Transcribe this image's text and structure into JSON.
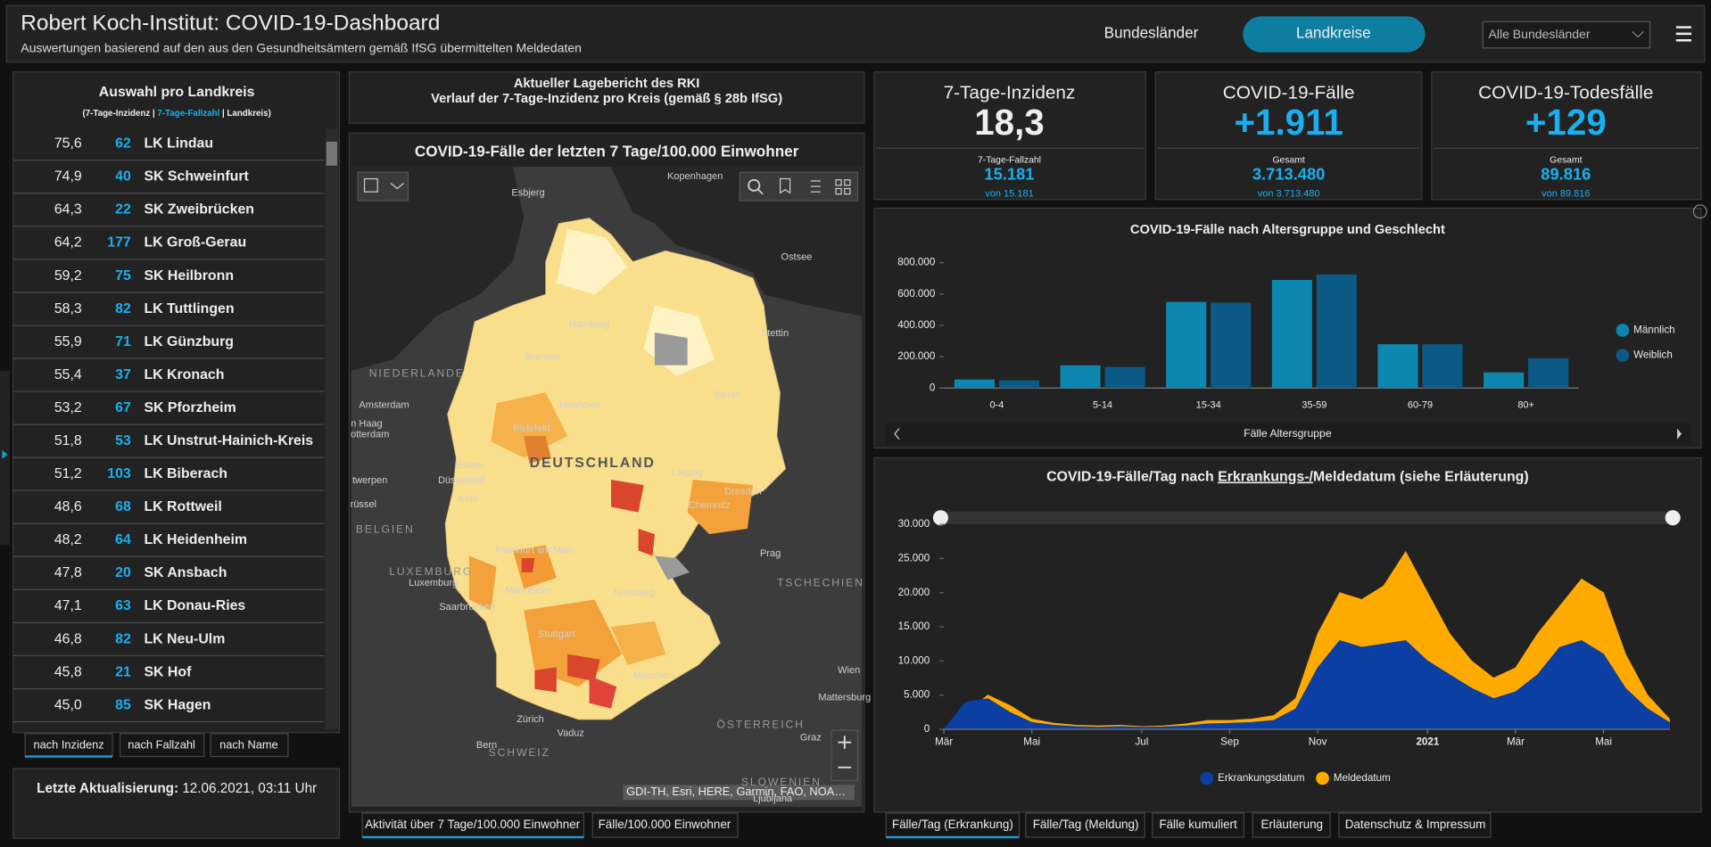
{
  "header": {
    "title": "Robert Koch-Institut: COVID-19-Dashboard",
    "subtitle": "Auswertungen basierend auf den aus den Gesundheitsämtern gemäß IfSG übermittelten Meldedaten",
    "nav": [
      "Bundesländer",
      "Landkreise"
    ],
    "select": "Alle Bundesländer"
  },
  "district_list": {
    "title": "Auswahl pro Landkreis",
    "legend": [
      "(7-Tage-Inzidenz | ",
      "7-Tage-Fallzahl",
      " | Landkreis)"
    ],
    "rows": [
      [
        "75,6",
        "62",
        "LK Lindau"
      ],
      [
        "74,9",
        "40",
        "SK Schweinfurt"
      ],
      [
        "64,3",
        "22",
        "SK Zweibrücken"
      ],
      [
        "64,2",
        "177",
        "LK Groß-Gerau"
      ],
      [
        "59,2",
        "75",
        "SK Heilbronn"
      ],
      [
        "58,3",
        "82",
        "LK Tuttlingen"
      ],
      [
        "55,9",
        "71",
        "LK Günzburg"
      ],
      [
        "55,4",
        "37",
        "LK Kronach"
      ],
      [
        "53,2",
        "67",
        "SK Pforzheim"
      ],
      [
        "51,8",
        "53",
        "LK Unstrut-Hainich-Kreis"
      ],
      [
        "51,2",
        "103",
        "LK Biberach"
      ],
      [
        "48,6",
        "68",
        "LK Rottweil"
      ],
      [
        "48,2",
        "64",
        "LK Heidenheim"
      ],
      [
        "47,8",
        "20",
        "SK Ansbach"
      ],
      [
        "47,1",
        "63",
        "LK Donau-Ries"
      ],
      [
        "46,8",
        "82",
        "LK Neu-Ulm"
      ],
      [
        "45,8",
        "21",
        "SK Hof"
      ],
      [
        "45,0",
        "85",
        "SK Hagen"
      ]
    ],
    "tabs": [
      "nach Inzidenz",
      "nach Fallzahl",
      "nach Name"
    ]
  },
  "update": {
    "label": "Letzte Aktualisierung:",
    "value": " 12.06.2021, 03:11 Uhr"
  },
  "report": {
    "line1": "Aktueller Lagebericht des RKI",
    "line2": "Verlauf der 7-Tage-Inzidenz pro Kreis (gemäß § 28b IfSG)"
  },
  "map": {
    "title": "COVID-19-Fälle der letzten 7 Tage/100.000 Einwohner",
    "labels": [
      "Kopenhagen",
      "Esbjerg",
      "Ostsee",
      "Hamburg",
      "Stettin",
      "Bremen",
      "NIEDERLANDE",
      "Berlin",
      "Hannover",
      "Amsterdam",
      "n Haag",
      "otterdam",
      "Bielefeld",
      "DEUTSCHLAND",
      "Essen",
      "Düsseldorf",
      "Leipzig",
      "twerpen",
      "Köln",
      "Dresden",
      "Chemnitz",
      "rüssel",
      "BELGIEN",
      "Frankfurt am Main",
      "Prag",
      "LUXEMBURG",
      "Luxemburg",
      "TSCHECHIEN",
      "Mannheim",
      "Nürnberg",
      "Saarbrücken",
      "Stuttgart",
      "Wien",
      "München",
      "Mattersburg",
      "Zürich",
      "ÖSTERREICH",
      "Vaduz",
      "Graz",
      "Bern",
      "SCHWEIZ",
      "SLOWENIEN",
      "Ljubljana"
    ],
    "attribution": "GDI-TH, Esri, HERE, Garmin, FAO, NOA…",
    "tabs": [
      "Aktivität über 7 Tage/100.000 Einwohner",
      "Fälle/100.000 Einwohner"
    ]
  },
  "kpis": [
    {
      "title": "7-Tage-Inzidenz",
      "value": "18,3",
      "sub_label": "7-Tage-Fallzahl",
      "sub_value": "15.181",
      "sub_note": "von 15.181"
    },
    {
      "title": "COVID-19-Fälle",
      "value": "+1.911",
      "sub_label": "Gesamt",
      "sub_value": "3.713.480",
      "sub_note": "von 3.713.480"
    },
    {
      "title": "COVID-19-Todesfälle",
      "value": "+129",
      "sub_label": "Gesamt",
      "sub_value": "89.816",
      "sub_note": "von 89.816"
    }
  ],
  "chart_data": [
    {
      "type": "bar",
      "title": "COVID-19-Fälle nach Altersgruppe und Geschlecht",
      "x_label": "Fälle Altersgruppe",
      "categories": [
        "0-4",
        "5-14",
        "15-34",
        "35-59",
        "60-79",
        "80+"
      ],
      "series": [
        {
          "name": "Männlich",
          "color": "#0e87b0",
          "values": [
            55000,
            145000,
            550000,
            690000,
            280000,
            100000
          ]
        },
        {
          "name": "Weiblich",
          "color": "#0b5a86",
          "values": [
            50000,
            135000,
            545000,
            725000,
            280000,
            190000
          ]
        }
      ],
      "ylim": [
        0,
        800000
      ],
      "yticks": [
        0,
        {
          "value": 200000,
          "label": "200.000"
        },
        {
          "value": 400000,
          "label": "400.000"
        },
        {
          "value": 600000,
          "label": "600.000"
        },
        {
          "value": 800000,
          "label": "800.000"
        }
      ],
      "grid": false
    },
    {
      "type": "area",
      "title_parts": [
        "COVID-19-Fälle/Tag nach ",
        "Erkrankungs-/",
        "Meldedatum (siehe Erläuterung)"
      ],
      "categories": [
        "Mär",
        null,
        null,
        null,
        "Mai",
        null,
        null,
        null,
        null,
        "Jul",
        null,
        null,
        null,
        "Sep",
        null,
        null,
        null,
        "Nov",
        null,
        null,
        null,
        null,
        "2021",
        null,
        null,
        null,
        "Mär",
        null,
        null,
        null,
        "Mai",
        null,
        null,
        null
      ],
      "series": [
        {
          "name": "Meldedatum",
          "color": "#ffaa00",
          "values": [
            0,
            2500,
            5000,
            3500,
            1500,
            900,
            600,
            500,
            600,
            400,
            500,
            800,
            1300,
            1300,
            1500,
            2000,
            4500,
            14000,
            20000,
            19000,
            21000,
            26000,
            20000,
            14000,
            10000,
            7500,
            9000,
            14000,
            18000,
            22000,
            20000,
            11000,
            5000,
            1500
          ]
        },
        {
          "name": "Erkrankungsdatum",
          "color": "#0b3fa3",
          "values": [
            0,
            4000,
            4500,
            2500,
            1000,
            600,
            400,
            300,
            400,
            300,
            350,
            500,
            800,
            900,
            1000,
            1300,
            3000,
            9000,
            13000,
            12000,
            12500,
            13000,
            10000,
            8000,
            6000,
            4500,
            5500,
            8000,
            12000,
            13000,
            11000,
            6000,
            3000,
            1000
          ]
        }
      ],
      "ylim": [
        0,
        30000
      ],
      "yticks": [
        0,
        {
          "value": 5000,
          "label": "5.000"
        },
        {
          "value": 10000,
          "label": "10.000"
        },
        {
          "value": 15000,
          "label": "15.000"
        },
        {
          "value": 20000,
          "label": "20.000"
        },
        {
          "value": 25000,
          "label": "25.000"
        },
        {
          "value": 30000,
          "label": "30.000"
        }
      ],
      "grid": false
    }
  ],
  "chart_tabs": [
    "Fälle/Tag (Erkrankung)",
    "Fälle/Tag (Meldung)",
    "Fälle kumuliert",
    "Erläuterung",
    "Datenschutz & Impressum"
  ]
}
